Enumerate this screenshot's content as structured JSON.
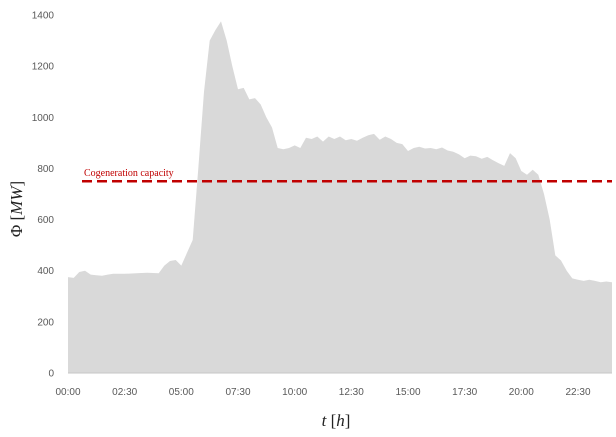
{
  "chart_data": {
    "type": "area",
    "title": "",
    "xlabel": "t [h]",
    "ylabel": "Φ [MW]",
    "x_ticks": [
      "00:00",
      "02:30",
      "05:00",
      "07:30",
      "10:00",
      "12:30",
      "15:00",
      "17:30",
      "20:00",
      "22:30"
    ],
    "y_ticks": [
      "0",
      "200",
      "400",
      "600",
      "800",
      "1000",
      "1200",
      "1400"
    ],
    "xlim": [
      0,
      24
    ],
    "ylim": [
      0,
      1400
    ],
    "x_unit": "hours",
    "grid": false,
    "series": [
      {
        "name": "",
        "color": "#d9d9d9",
        "x": [
          0,
          0.25,
          0.5,
          0.75,
          1,
          1.25,
          1.5,
          1.75,
          2,
          2.5,
          3,
          3.5,
          4,
          4.25,
          4.5,
          4.75,
          5,
          5.25,
          5.5,
          5.75,
          6,
          6.25,
          6.5,
          6.75,
          7,
          7.25,
          7.5,
          7.75,
          8,
          8.25,
          8.5,
          8.75,
          9,
          9.25,
          9.5,
          9.75,
          10,
          10.25,
          10.5,
          10.75,
          11,
          11.25,
          11.5,
          11.75,
          12,
          12.25,
          12.5,
          12.75,
          13,
          13.25,
          13.5,
          13.75,
          14,
          14.25,
          14.5,
          14.75,
          15,
          15.25,
          15.5,
          15.75,
          16,
          16.25,
          16.5,
          16.75,
          17,
          17.25,
          17.5,
          17.75,
          18,
          18.25,
          18.5,
          18.75,
          19,
          19.25,
          19.5,
          19.75,
          20,
          20.25,
          20.5,
          20.75,
          21,
          21.25,
          21.5,
          21.75,
          22,
          22.25,
          22.5,
          22.75,
          23,
          23.25,
          23.5,
          23.75,
          24
        ],
        "values": [
          375,
          372,
          395,
          400,
          385,
          382,
          380,
          385,
          388,
          388,
          390,
          392,
          390,
          420,
          438,
          442,
          420,
          470,
          520,
          800,
          1100,
          1300,
          1340,
          1375,
          1300,
          1200,
          1110,
          1115,
          1070,
          1075,
          1050,
          1000,
          960,
          880,
          875,
          880,
          890,
          880,
          920,
          915,
          925,
          905,
          925,
          915,
          925,
          910,
          915,
          908,
          920,
          930,
          935,
          912,
          925,
          915,
          900,
          895,
          868,
          880,
          885,
          878,
          880,
          875,
          882,
          870,
          865,
          855,
          840,
          850,
          848,
          838,
          845,
          832,
          820,
          810,
          860,
          840,
          790,
          775,
          795,
          775,
          700,
          600,
          460,
          440,
          400,
          370,
          365,
          360,
          365,
          360,
          355,
          358,
          355
        ]
      }
    ],
    "annotations": [
      {
        "label": "Cogeneration capacity",
        "y": 750,
        "color": "#c00000",
        "style": "dashed"
      }
    ]
  }
}
